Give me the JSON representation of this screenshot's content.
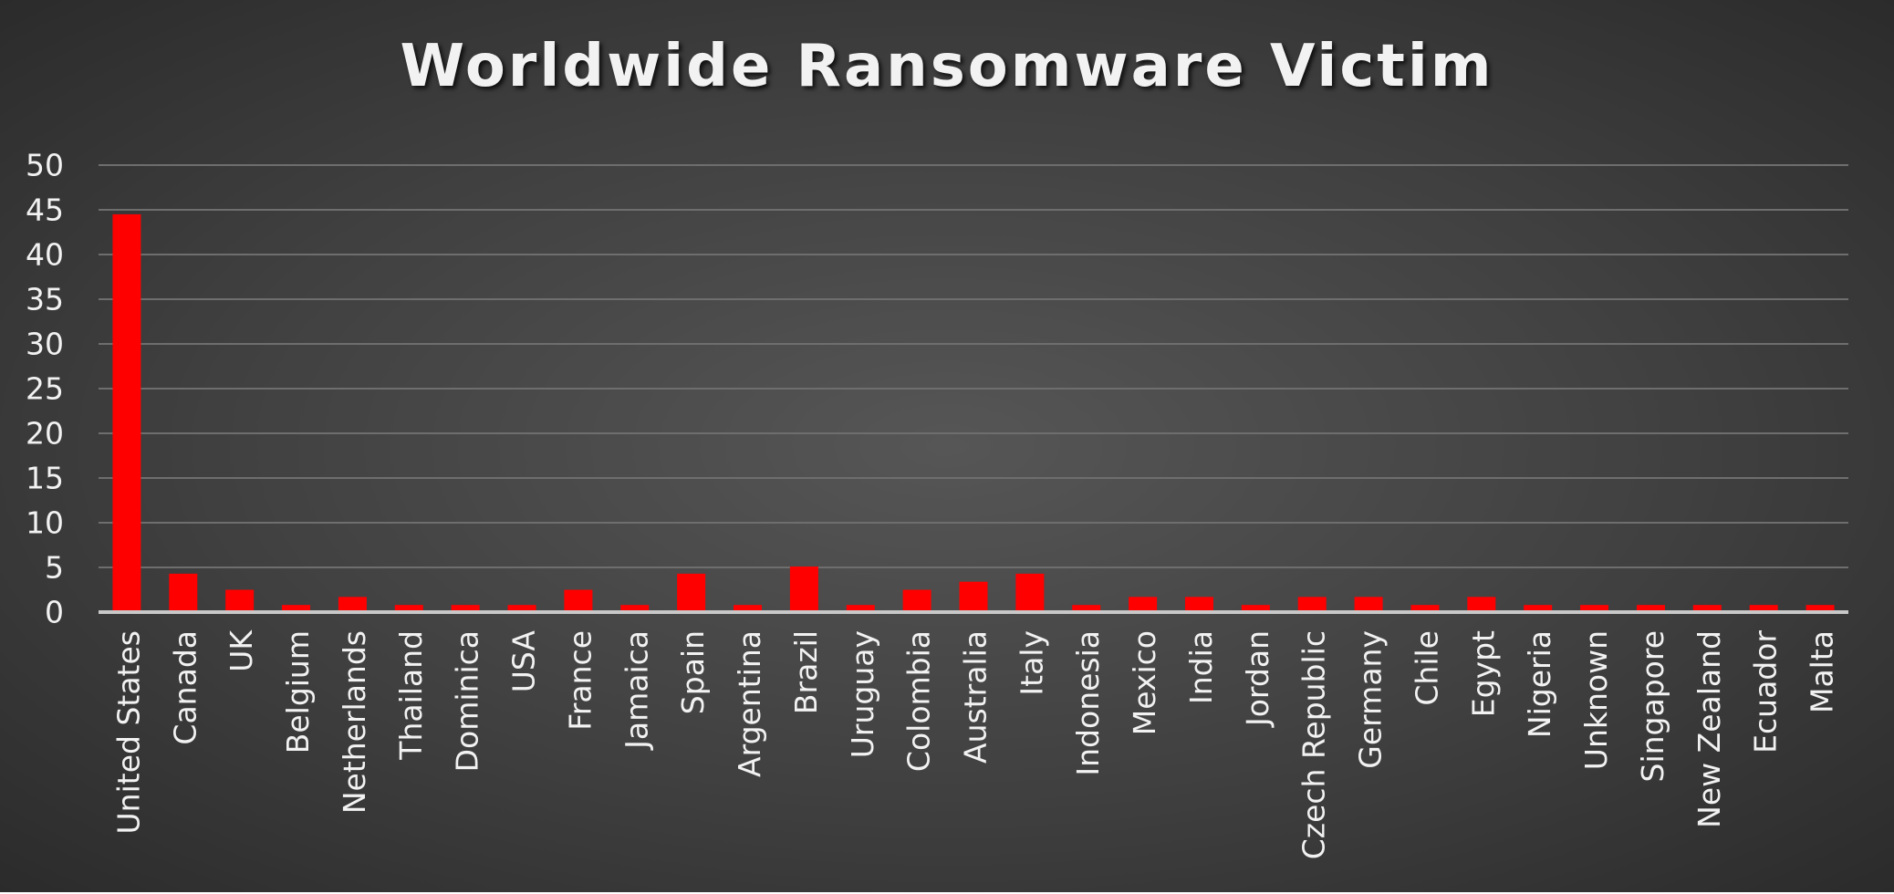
{
  "chart_data": {
    "type": "bar",
    "title": "Worldwide Ransomware Victim",
    "xlabel": "",
    "ylabel": "",
    "ylim": [
      0,
      50
    ],
    "yticks": [
      0,
      5,
      10,
      15,
      20,
      25,
      30,
      35,
      40,
      45,
      50
    ],
    "grid": true,
    "legend": "none",
    "bar_color": "#ff0000",
    "categories": [
      "United States",
      "Canada",
      "UK",
      "Belgium",
      "Netherlands",
      "Thailand",
      "Dominica",
      "USA",
      "France",
      "Jamaica",
      "Spain",
      "Argentina",
      "Brazil",
      "Uruguay",
      "Colombia",
      "Australia",
      "Italy",
      "Indonesia",
      "Mexico",
      "India",
      "Jordan",
      "Czech Republic",
      "Germany",
      "Chile",
      "Egypt",
      "Nigeria",
      "Unknown",
      "Singapore",
      "New Zealand",
      "Ecuador",
      "Malta"
    ],
    "values": [
      44.5,
      4.3,
      2.5,
      0.8,
      1.7,
      0.8,
      0.8,
      0.8,
      2.5,
      0.8,
      4.3,
      0.8,
      5.1,
      0.8,
      2.5,
      3.4,
      4.3,
      0.8,
      1.7,
      1.7,
      0.8,
      1.7,
      1.7,
      0.8,
      1.7,
      0.8,
      0.8,
      0.8,
      0.8,
      0.8,
      0.8
    ]
  }
}
